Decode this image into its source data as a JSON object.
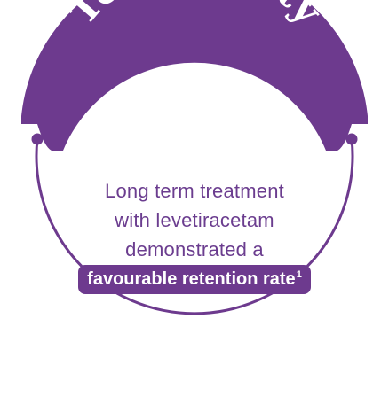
{
  "banner": {
    "title": "Tolerability"
  },
  "body": {
    "line1": "Long term treatment",
    "line2": "with levetiracetam",
    "line3": "demonstrated a",
    "highlight": "favourable retention rate",
    "footnote_ref": "1"
  },
  "colors": {
    "purple": "#6d3a8e",
    "text_purple": "#6b3d8f",
    "white": "#ffffff"
  }
}
